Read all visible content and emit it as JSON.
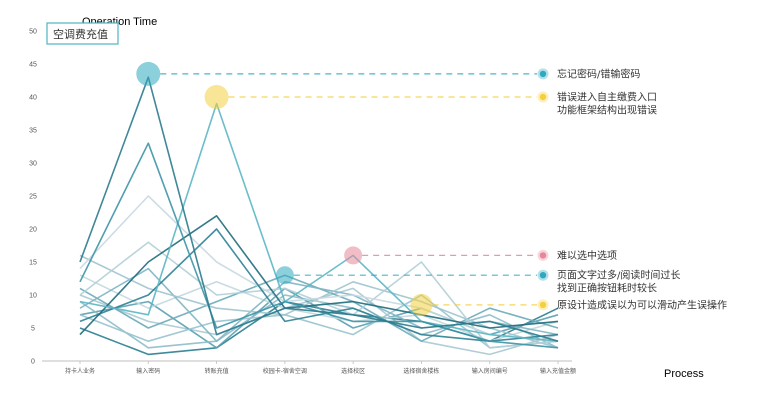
{
  "chart_data": {
    "type": "line",
    "title": "空调费充值",
    "ylabel": "Operation Time",
    "xlabel": "Process",
    "ylim": [
      0,
      50
    ],
    "yticks": [
      0,
      5,
      10,
      15,
      20,
      25,
      30,
      35,
      40,
      45,
      50
    ],
    "categories": [
      "持卡人业务",
      "输入密码",
      "转账充值",
      "校园卡-宿舍空调",
      "选择校区",
      "选择宿舍楼栋",
      "输入房间编号",
      "输入充值金额"
    ],
    "series": [
      {
        "color": "#2b7a8c",
        "values": [
          15,
          43,
          4,
          8,
          7,
          5,
          6,
          3
        ]
      },
      {
        "color": "#3d93a6",
        "values": [
          12,
          33,
          5,
          9,
          6,
          6,
          3,
          2
        ]
      },
      {
        "color": "#5bb6c4",
        "values": [
          9,
          7,
          39,
          9,
          16,
          6,
          4,
          3
        ]
      },
      {
        "color": "#1f6c7c",
        "values": [
          4,
          15,
          22,
          8,
          9,
          7,
          5,
          6
        ]
      },
      {
        "color": "#2d8194",
        "values": [
          6,
          10,
          20,
          6,
          8,
          4,
          3,
          4
        ]
      },
      {
        "color": "#c9d9e0",
        "values": [
          14,
          25,
          15,
          9,
          10,
          8,
          4,
          3
        ]
      },
      {
        "color": "#b3cfd7",
        "values": [
          10,
          18,
          10,
          11,
          7,
          15,
          2,
          3
        ]
      },
      {
        "color": "#9fc4cf",
        "values": [
          16,
          11,
          8,
          7,
          12,
          9,
          5,
          2
        ]
      },
      {
        "color": "#7fb5c3",
        "values": [
          8,
          14,
          3,
          12,
          10,
          5,
          6,
          4
        ]
      },
      {
        "color": "#6aaab9",
        "values": [
          11,
          5,
          9,
          13,
          9,
          3,
          8,
          5
        ]
      },
      {
        "color": "#98c3ce",
        "values": [
          7,
          3,
          6,
          7,
          4,
          10,
          2,
          3
        ]
      },
      {
        "color": "#c2d8de",
        "values": [
          13,
          8,
          12,
          8,
          6,
          7,
          3,
          6
        ]
      },
      {
        "color": "#8dbcc8",
        "values": [
          9,
          2,
          3,
          10,
          8,
          4,
          7,
          2
        ]
      },
      {
        "color": "#5aa0b1",
        "values": [
          7,
          9,
          2,
          11,
          5,
          8,
          4,
          7
        ]
      },
      {
        "color": "#2a7d90",
        "values": [
          5,
          1,
          2,
          9,
          7,
          6,
          3,
          8
        ]
      },
      {
        "color": "#a6c9d2",
        "values": [
          10,
          6,
          4,
          8,
          11,
          3,
          1,
          4
        ]
      }
    ],
    "highlights": [
      {
        "label": "忘记密码/错输密码",
        "category": 1,
        "value": 43.5,
        "color": "#2ea9c0",
        "text_lines": [
          "忘记密码/错输密码"
        ]
      },
      {
        "label": "错误进入自主缴费入口",
        "category": 2,
        "value": 40,
        "color": "#f4d03f",
        "text_lines": [
          "错误进入自主缴费入口",
          "功能框架结构出现错误"
        ]
      },
      {
        "label": "难以选中选项",
        "category": 4,
        "value": 16,
        "color": "#e5889a",
        "text_lines": [
          "难以选中选项"
        ]
      },
      {
        "label": "页面文字过多",
        "category": 3,
        "value": 13,
        "color": "#2ea9c0",
        "text_lines": [
          "页面文字过多/阅读时间过长",
          "找到正确按钮耗时较长"
        ]
      },
      {
        "label": "原设计造成误以为可以滑动",
        "category": 5,
        "value": 8.5,
        "color": "#f4d03f",
        "text_lines": [
          "原设计造成误以为可以滑动产生误操作"
        ]
      }
    ],
    "grid": false,
    "legend": "none"
  }
}
